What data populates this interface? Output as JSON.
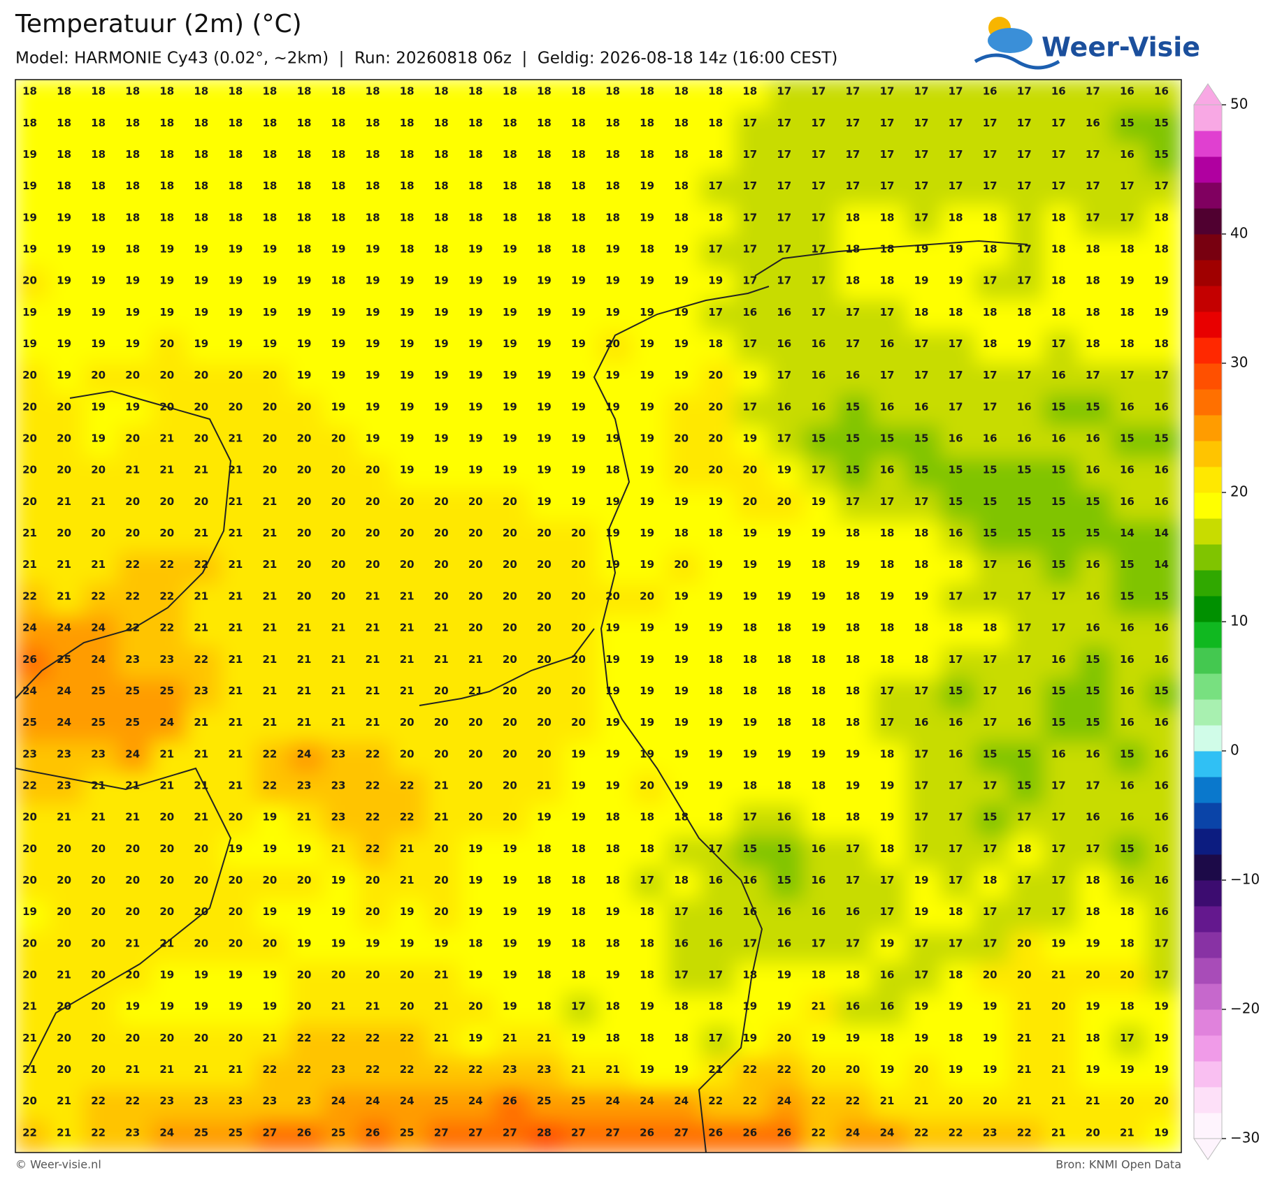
{
  "header": {
    "title": "Temperatuur (2m) (°C)",
    "subtitle": "Model: HARMONIE Cy43 (0.02°, ~2km)  |  Run: 20260818 06z  |  Geldig: 2026-08-18 14z (16:00 CEST)",
    "logo": "Weer-Visie"
  },
  "footer": {
    "left": "© Weer-visie.nl",
    "right": "Bron: KNMI Open Data"
  },
  "colorbar": {
    "lim": [
      -30,
      50
    ],
    "ticks": [
      {
        "value": -30,
        "label": "−30"
      },
      {
        "value": -20,
        "label": "−20"
      },
      {
        "value": -10,
        "label": "−10"
      },
      0,
      10,
      20,
      30,
      40,
      50
    ],
    "colors": [
      "#fef4fd",
      "#fde0f8",
      "#f9bff1",
      "#f09be8",
      "#e082dc",
      "#c668cc",
      "#a84cb8",
      "#8832a4",
      "#64188e",
      "#3c0c70",
      "#1c0a48",
      "#0c1c80",
      "#0a44a8",
      "#0a78cc",
      "#30c0f4",
      "#d0fce8",
      "#a8f0b0",
      "#78e080",
      "#44c850",
      "#10b820",
      "#009000",
      "#30a800",
      "#80c400",
      "#c8dc00",
      "#ffff00",
      "#ffe800",
      "#ffc400",
      "#ff9c00",
      "#ff7000",
      "#ff5000",
      "#ff2800",
      "#e80000",
      "#c40000",
      "#a00000",
      "#780010",
      "#500030",
      "#800060",
      "#b000a0",
      "#e040d0",
      "#f8a8e4"
    ]
  },
  "map": {
    "rows": [
      [
        18,
        18,
        18,
        18,
        18,
        18,
        18,
        18,
        18,
        18,
        18,
        18,
        18,
        18,
        18,
        18,
        18,
        18,
        18,
        18,
        18,
        18,
        17,
        17,
        17,
        17,
        17,
        17,
        16,
        17,
        16,
        17,
        16,
        16
      ],
      [
        18,
        18,
        18,
        18,
        18,
        18,
        18,
        18,
        18,
        18,
        18,
        18,
        18,
        18,
        18,
        18,
        18,
        18,
        18,
        18,
        18,
        17,
        17,
        17,
        17,
        17,
        17,
        17,
        17,
        17,
        17,
        16,
        15,
        15
      ],
      [
        19,
        18,
        18,
        18,
        18,
        18,
        18,
        18,
        18,
        18,
        18,
        18,
        18,
        18,
        18,
        18,
        18,
        18,
        18,
        18,
        18,
        17,
        17,
        17,
        17,
        17,
        17,
        17,
        17,
        17,
        17,
        17,
        16,
        15
      ],
      [
        19,
        18,
        18,
        18,
        18,
        18,
        18,
        18,
        18,
        18,
        18,
        18,
        18,
        18,
        18,
        18,
        18,
        18,
        19,
        18,
        17,
        17,
        17,
        17,
        17,
        17,
        17,
        17,
        17,
        17,
        17,
        17,
        17,
        17
      ],
      [
        19,
        19,
        18,
        18,
        18,
        18,
        18,
        18,
        18,
        18,
        18,
        18,
        18,
        18,
        18,
        18,
        18,
        18,
        19,
        18,
        18,
        17,
        17,
        17,
        18,
        18,
        17,
        18,
        18,
        17,
        18,
        17,
        17,
        18
      ],
      [
        19,
        19,
        19,
        18,
        19,
        19,
        19,
        19,
        18,
        19,
        19,
        18,
        18,
        19,
        19,
        18,
        18,
        19,
        18,
        19,
        17,
        17,
        17,
        17,
        18,
        18,
        19,
        19,
        18,
        17,
        18,
        18,
        18,
        18
      ],
      [
        20,
        19,
        19,
        19,
        19,
        19,
        19,
        19,
        19,
        18,
        19,
        19,
        19,
        19,
        19,
        19,
        19,
        19,
        19,
        19,
        19,
        17,
        17,
        17,
        18,
        18,
        19,
        19,
        17,
        17,
        18,
        18,
        19,
        19
      ],
      [
        19,
        19,
        19,
        19,
        19,
        19,
        19,
        19,
        19,
        19,
        19,
        19,
        19,
        19,
        19,
        19,
        19,
        19,
        19,
        19,
        17,
        16,
        16,
        17,
        17,
        17,
        18,
        18,
        18,
        18,
        18,
        18,
        18,
        19
      ],
      [
        19,
        19,
        19,
        19,
        20,
        19,
        19,
        19,
        19,
        19,
        19,
        19,
        19,
        19,
        19,
        19,
        19,
        20,
        19,
        19,
        18,
        17,
        16,
        16,
        17,
        16,
        17,
        17,
        18,
        19,
        17,
        18,
        18,
        18
      ],
      [
        20,
        19,
        20,
        20,
        20,
        20,
        20,
        20,
        19,
        19,
        19,
        19,
        19,
        19,
        19,
        19,
        19,
        19,
        19,
        19,
        20,
        19,
        17,
        16,
        16,
        17,
        17,
        17,
        17,
        17,
        16,
        17,
        17,
        17
      ],
      [
        20,
        20,
        19,
        19,
        20,
        20,
        20,
        20,
        20,
        19,
        19,
        19,
        19,
        19,
        19,
        19,
        19,
        19,
        19,
        20,
        20,
        17,
        16,
        16,
        15,
        16,
        16,
        17,
        17,
        16,
        15,
        15,
        16,
        16
      ],
      [
        20,
        20,
        19,
        20,
        21,
        20,
        21,
        20,
        20,
        20,
        19,
        19,
        19,
        19,
        19,
        19,
        19,
        19,
        19,
        20,
        20,
        19,
        17,
        15,
        15,
        15,
        15,
        16,
        16,
        16,
        16,
        16,
        15,
        15
      ],
      [
        20,
        20,
        20,
        21,
        21,
        21,
        21,
        20,
        20,
        20,
        20,
        19,
        19,
        19,
        19,
        19,
        19,
        18,
        19,
        20,
        20,
        20,
        19,
        17,
        15,
        16,
        15,
        15,
        15,
        15,
        15,
        16,
        16,
        16
      ],
      [
        20,
        21,
        21,
        20,
        20,
        20,
        21,
        21,
        20,
        20,
        20,
        20,
        20,
        20,
        20,
        19,
        19,
        19,
        19,
        19,
        19,
        20,
        20,
        19,
        17,
        17,
        17,
        15,
        15,
        15,
        15,
        15,
        16,
        16
      ],
      [
        21,
        20,
        20,
        20,
        20,
        21,
        21,
        21,
        20,
        20,
        20,
        20,
        20,
        20,
        20,
        20,
        20,
        19,
        19,
        18,
        18,
        19,
        19,
        19,
        18,
        18,
        18,
        16,
        15,
        15,
        15,
        15,
        14,
        14
      ],
      [
        21,
        21,
        21,
        22,
        22,
        22,
        21,
        21,
        20,
        20,
        20,
        20,
        20,
        20,
        20,
        20,
        20,
        19,
        19,
        20,
        19,
        19,
        19,
        18,
        19,
        18,
        18,
        18,
        17,
        16,
        15,
        16,
        15,
        14
      ],
      [
        22,
        21,
        22,
        22,
        22,
        21,
        21,
        21,
        20,
        20,
        21,
        21,
        20,
        20,
        20,
        20,
        20,
        20,
        20,
        19,
        19,
        19,
        19,
        19,
        18,
        19,
        19,
        17,
        17,
        17,
        17,
        16,
        15,
        15
      ],
      [
        24,
        24,
        24,
        22,
        22,
        21,
        21,
        21,
        21,
        21,
        21,
        21,
        21,
        20,
        20,
        20,
        20,
        19,
        19,
        19,
        19,
        18,
        18,
        19,
        18,
        18,
        18,
        18,
        18,
        17,
        17,
        16,
        16,
        16
      ],
      [
        26,
        25,
        24,
        23,
        23,
        22,
        21,
        21,
        21,
        21,
        21,
        21,
        21,
        21,
        20,
        20,
        20,
        19,
        19,
        19,
        18,
        18,
        18,
        18,
        18,
        18,
        18,
        17,
        17,
        17,
        16,
        15,
        16,
        16
      ],
      [
        24,
        24,
        25,
        25,
        25,
        23,
        21,
        21,
        21,
        21,
        21,
        21,
        20,
        21,
        20,
        20,
        20,
        19,
        19,
        19,
        18,
        18,
        18,
        18,
        18,
        17,
        17,
        15,
        17,
        16,
        15,
        15,
        16,
        15
      ],
      [
        25,
        24,
        25,
        25,
        24,
        21,
        21,
        21,
        21,
        21,
        21,
        20,
        20,
        20,
        20,
        20,
        20,
        19,
        19,
        19,
        19,
        19,
        18,
        18,
        18,
        17,
        16,
        16,
        17,
        16,
        15,
        15,
        16,
        16
      ],
      [
        23,
        23,
        23,
        24,
        21,
        21,
        21,
        22,
        24,
        23,
        22,
        20,
        20,
        20,
        20,
        20,
        19,
        19,
        19,
        19,
        19,
        19,
        19,
        19,
        19,
        18,
        17,
        16,
        15,
        15,
        16,
        16,
        15,
        16
      ],
      [
        22,
        23,
        21,
        21,
        21,
        21,
        21,
        22,
        23,
        23,
        22,
        22,
        21,
        20,
        20,
        21,
        19,
        19,
        20,
        19,
        19,
        18,
        18,
        18,
        19,
        19,
        17,
        17,
        17,
        15,
        17,
        17,
        16,
        16
      ],
      [
        20,
        21,
        21,
        21,
        20,
        21,
        20,
        19,
        21,
        23,
        22,
        22,
        21,
        20,
        20,
        19,
        19,
        18,
        18,
        18,
        18,
        17,
        16,
        18,
        18,
        19,
        17,
        17,
        15,
        17,
        17,
        16,
        16,
        16
      ],
      [
        20,
        20,
        20,
        20,
        20,
        20,
        19,
        19,
        19,
        21,
        22,
        21,
        20,
        19,
        19,
        18,
        18,
        18,
        18,
        17,
        17,
        15,
        15,
        16,
        17,
        18,
        17,
        17,
        17,
        18,
        17,
        17,
        15,
        16
      ],
      [
        20,
        20,
        20,
        20,
        20,
        20,
        20,
        20,
        20,
        19,
        20,
        21,
        20,
        19,
        19,
        18,
        18,
        18,
        17,
        18,
        16,
        16,
        15,
        16,
        17,
        17,
        19,
        17,
        18,
        17,
        17,
        18,
        16,
        16
      ],
      [
        19,
        20,
        20,
        20,
        20,
        20,
        20,
        19,
        19,
        19,
        20,
        19,
        20,
        19,
        19,
        19,
        18,
        19,
        18,
        17,
        16,
        16,
        16,
        16,
        16,
        17,
        19,
        18,
        17,
        17,
        17,
        18,
        18,
        16
      ],
      [
        20,
        20,
        20,
        21,
        21,
        20,
        20,
        20,
        19,
        19,
        19,
        19,
        19,
        18,
        19,
        19,
        18,
        18,
        18,
        16,
        16,
        17,
        16,
        17,
        17,
        19,
        17,
        17,
        17,
        20,
        19,
        19,
        18,
        17
      ],
      [
        20,
        21,
        20,
        20,
        19,
        19,
        19,
        19,
        20,
        20,
        20,
        20,
        21,
        19,
        19,
        18,
        18,
        19,
        18,
        17,
        17,
        18,
        19,
        18,
        18,
        16,
        17,
        18,
        20,
        20,
        21,
        20,
        20,
        17
      ],
      [
        21,
        20,
        20,
        19,
        19,
        19,
        19,
        19,
        20,
        21,
        21,
        20,
        21,
        20,
        19,
        18,
        17,
        18,
        19,
        18,
        18,
        19,
        19,
        21,
        16,
        16,
        19,
        19,
        19,
        21,
        20,
        19,
        18,
        19
      ],
      [
        21,
        20,
        20,
        20,
        20,
        20,
        20,
        21,
        22,
        22,
        22,
        22,
        21,
        19,
        21,
        21,
        19,
        18,
        18,
        18,
        17,
        19,
        20,
        19,
        19,
        18,
        19,
        18,
        19,
        21,
        21,
        18,
        17,
        19
      ],
      [
        21,
        20,
        20,
        21,
        21,
        21,
        21,
        22,
        22,
        23,
        22,
        22,
        22,
        22,
        23,
        23,
        21,
        21,
        19,
        19,
        21,
        22,
        22,
        20,
        20,
        19,
        20,
        19,
        19,
        21,
        21,
        19,
        19,
        19
      ],
      [
        20,
        21,
        22,
        22,
        23,
        23,
        23,
        23,
        23,
        24,
        24,
        24,
        25,
        24,
        26,
        25,
        25,
        24,
        24,
        24,
        22,
        22,
        24,
        22,
        22,
        21,
        21,
        20,
        20,
        21,
        21,
        21,
        20,
        20
      ],
      [
        22,
        21,
        22,
        23,
        24,
        25,
        25,
        27,
        26,
        25,
        26,
        25,
        27,
        27,
        27,
        28,
        27,
        27,
        26,
        27,
        26,
        26,
        26,
        22,
        24,
        24,
        22,
        22,
        23,
        22,
        21,
        20,
        21,
        19
      ]
    ]
  }
}
